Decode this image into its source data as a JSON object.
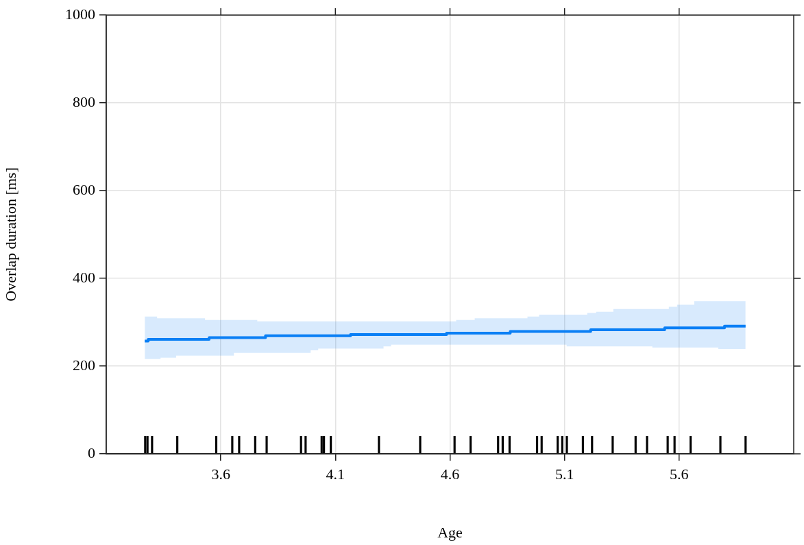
{
  "chart_data": {
    "type": "step",
    "xlabel": "Age",
    "ylabel": "Overlap duration [ms]",
    "xlim": [
      3.1,
      6.1
    ],
    "ylim": [
      0,
      1000
    ],
    "xticks": [
      3.6,
      4.1,
      4.6,
      5.1,
      5.6
    ],
    "yticks": [
      0,
      200,
      400,
      600,
      800,
      1000
    ],
    "grid": true,
    "legend": false,
    "series": [
      {
        "color": "#0a7ff5",
        "x": [
          3.268,
          3.283,
          3.322,
          3.337,
          3.405,
          3.531,
          3.549,
          3.657,
          3.759,
          3.795,
          3.992,
          4.025,
          4.166,
          4.31,
          4.343,
          4.585,
          4.627,
          4.708,
          4.863,
          4.938,
          4.989,
          5.109,
          5.199,
          5.214,
          5.238,
          5.313,
          5.483,
          5.537,
          5.555,
          5.591,
          5.666,
          5.771,
          5.798,
          5.854,
          5.89
        ],
        "values": [
          257,
          257,
          261,
          261,
          261,
          261,
          261,
          265,
          265,
          265,
          269,
          269,
          269,
          272,
          272,
          272,
          275,
          275,
          275,
          279,
          279,
          279,
          279,
          279,
          283,
          283,
          283,
          283,
          287,
          287,
          287,
          287,
          287,
          291,
          291
        ],
        "upper": [
          313,
          313,
          313,
          309,
          309,
          309,
          305,
          305,
          305,
          302,
          302,
          302,
          302,
          302,
          302,
          302,
          302,
          305,
          309,
          309,
          313,
          317,
          317,
          321,
          321,
          324,
          330,
          330,
          330,
          335,
          340,
          348,
          348,
          348,
          348
        ],
        "lower": [
          211,
          216,
          216,
          216,
          219,
          224,
          224,
          224,
          230,
          230,
          230,
          236,
          240,
          240,
          245,
          249,
          249,
          249,
          249,
          249,
          249,
          249,
          245,
          245,
          245,
          245,
          245,
          242,
          242,
          242,
          242,
          242,
          239,
          239,
          239
        ]
      },
      {
        "type": "bar",
        "color": "#000000",
        "x": [
          3.27,
          3.28,
          3.3,
          3.41,
          3.58,
          3.65,
          3.68,
          3.75,
          3.8,
          3.95,
          3.97,
          4.04,
          4.05,
          4.08,
          4.29,
          4.47,
          4.62,
          4.69,
          4.81,
          4.83,
          4.86,
          4.98,
          5.0,
          5.07,
          5.09,
          5.11,
          5.18,
          5.22,
          5.31,
          5.41,
          5.46,
          5.55,
          5.58,
          5.65,
          5.78,
          5.89
        ],
        "values": [
          40,
          40,
          40,
          40,
          40,
          40,
          40,
          40,
          40,
          40,
          40,
          40,
          40,
          40,
          40,
          40,
          40,
          40,
          40,
          40,
          40,
          40,
          40,
          40,
          40,
          40,
          40,
          40,
          40,
          40,
          40,
          40,
          40,
          40,
          40,
          40
        ]
      }
    ]
  }
}
